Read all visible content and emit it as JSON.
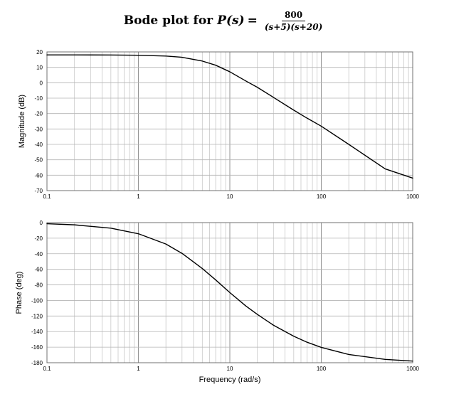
{
  "title": {
    "text": "Bode plot for",
    "func": "P(s)",
    "eq": "=",
    "numerator": "800",
    "denominator": "(s+5)(s+20)"
  },
  "chart_data": [
    {
      "type": "line",
      "name": "magnitude",
      "xscale": "log",
      "xlim": [
        0.1,
        1000
      ],
      "ylim": [
        -70,
        20
      ],
      "xticks": [
        0.1,
        1,
        10,
        100,
        1000
      ],
      "xtick_labels": [
        "0.1",
        "1",
        "10",
        "100",
        "1000"
      ],
      "yticks": [
        20,
        10,
        0,
        -10,
        -20,
        -30,
        -40,
        -50,
        -60,
        -70
      ],
      "ytick_labels": [
        "20",
        "10",
        "0",
        "-10",
        "-20",
        "-30",
        "-40",
        "-50",
        "-60",
        "-70"
      ],
      "xlabel": "",
      "ylabel": "Magnitude (dB)",
      "grid": true,
      "x": [
        0.1,
        0.2,
        0.5,
        1,
        2,
        3,
        5,
        7,
        10,
        15,
        20,
        30,
        50,
        70,
        100,
        200,
        500,
        1000
      ],
      "y": [
        18.06,
        18.05,
        18.01,
        17.85,
        17.33,
        16.52,
        14.06,
        11.38,
        7.11,
        1.1,
        -2.97,
        -9.5,
        -17.8,
        -23.0,
        -28.2,
        -40.0,
        -55.9,
        -61.9
      ]
    },
    {
      "type": "line",
      "name": "phase",
      "xscale": "log",
      "xlim": [
        0.1,
        1000
      ],
      "ylim": [
        -180,
        0
      ],
      "xticks": [
        0.1,
        1,
        10,
        100,
        1000
      ],
      "xtick_labels": [
        "0.1",
        "1",
        "10",
        "100",
        "1000"
      ],
      "yticks": [
        0,
        -20,
        -40,
        -60,
        -80,
        -100,
        -120,
        -140,
        -160,
        -180
      ],
      "ytick_labels": [
        "0",
        "-20",
        "-40",
        "-60",
        "-80",
        "-100",
        "-120",
        "-140",
        "-160",
        "-180"
      ],
      "xlabel": "Frequency (rad/s)",
      "ylabel": "Phase (deg)",
      "grid": true,
      "x": [
        0.1,
        0.2,
        0.5,
        1,
        2,
        3,
        5,
        7,
        10,
        15,
        20,
        30,
        50,
        70,
        100,
        200,
        500,
        1000
      ],
      "y": [
        -1.43,
        -2.86,
        -7.15,
        -14.3,
        -27.5,
        -39.5,
        -59.0,
        -73.6,
        -89.9,
        -107.2,
        -117.9,
        -131.8,
        -146.0,
        -153.7,
        -160.3,
        -169.4,
        -175.7,
        -177.9
      ]
    }
  ]
}
